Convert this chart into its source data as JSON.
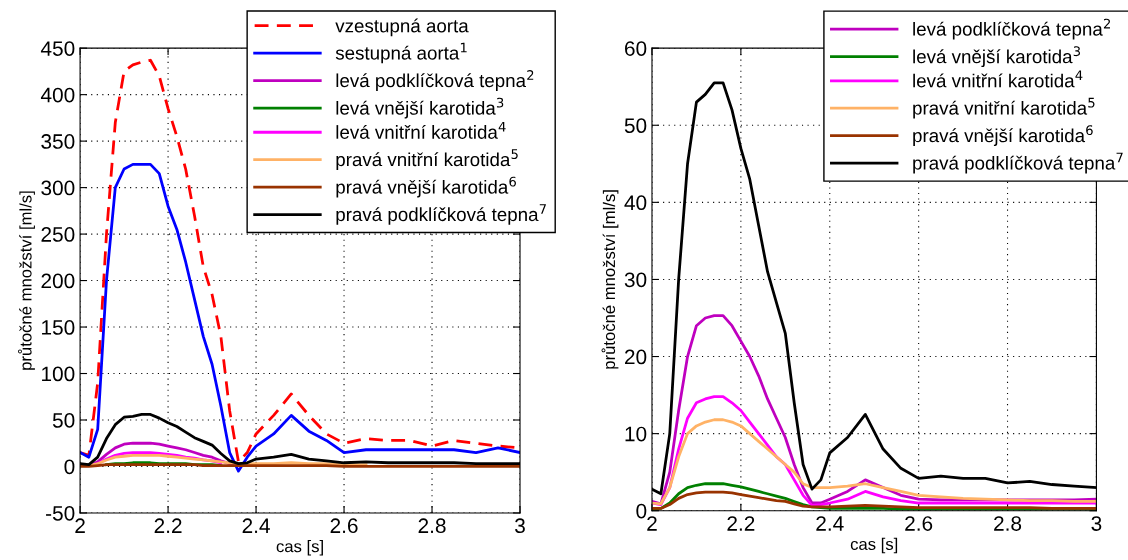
{
  "chart_data": [
    {
      "type": "line",
      "xlabel": "cas [s]",
      "ylabel": "průtočné množství [ml/s]",
      "xlim": [
        2,
        3
      ],
      "ylim": [
        -50,
        450
      ],
      "xticks": [
        2,
        2.2,
        2.4,
        2.6,
        2.8,
        3
      ],
      "yticks": [
        -50,
        0,
        50,
        100,
        150,
        200,
        250,
        300,
        350,
        400,
        450
      ],
      "grid": true,
      "legend": "top right",
      "x": [
        2.0,
        2.02,
        2.04,
        2.06,
        2.08,
        2.1,
        2.12,
        2.14,
        2.16,
        2.18,
        2.2,
        2.22,
        2.24,
        2.26,
        2.28,
        2.3,
        2.32,
        2.34,
        2.36,
        2.38,
        2.4,
        2.44,
        2.48,
        2.52,
        2.56,
        2.6,
        2.65,
        2.7,
        2.75,
        2.8,
        2.85,
        2.9,
        2.95,
        3.0
      ],
      "series": [
        {
          "name": "vzestupná aorta",
          "color": "#ff0000",
          "line_style": "dashed",
          "values": [
            15,
            12,
            90,
            250,
            370,
            425,
            432,
            435,
            437,
            420,
            385,
            355,
            320,
            270,
            215,
            185,
            140,
            60,
            5,
            15,
            35,
            55,
            78,
            55,
            35,
            25,
            30,
            28,
            28,
            22,
            28,
            25,
            22,
            20
          ]
        },
        {
          "name": "sestupná aorta$^{1}$",
          "color": "#0000ff",
          "values": [
            15,
            10,
            40,
            200,
            300,
            320,
            325,
            325,
            325,
            315,
            280,
            255,
            220,
            180,
            140,
            110,
            65,
            15,
            -5,
            10,
            22,
            35,
            55,
            38,
            28,
            15,
            18,
            18,
            18,
            18,
            18,
            15,
            20,
            15
          ]
        },
        {
          "name": "levá podklíčková tepna$^{2}$",
          "color": "#bf00bf",
          "values": [
            1,
            1,
            5,
            13,
            20,
            24,
            25,
            25,
            25,
            24,
            22,
            20,
            18,
            15,
            12,
            10,
            6,
            3,
            1,
            null,
            null,
            null,
            null,
            null,
            null,
            null,
            null,
            null,
            null,
            null,
            null,
            null,
            null,
            null
          ]
        },
        {
          "name": "levá vnější karotida$^{3}$",
          "color": "#008000",
          "values": [
            null,
            null,
            null,
            2,
            3,
            3,
            4,
            4,
            4,
            3,
            3,
            3,
            3,
            2,
            2,
            2,
            1,
            null,
            null,
            null,
            null,
            null,
            null,
            null,
            null,
            null,
            null,
            null,
            null,
            null,
            null,
            null,
            null,
            null
          ]
        },
        {
          "name": "levá vnitřní karotida$^{4}$",
          "color": "#ff00ff",
          "values": [
            null,
            null,
            3,
            8,
            12,
            14,
            15,
            15,
            15,
            14,
            13,
            12,
            10,
            9,
            7,
            6,
            4,
            null,
            null,
            null,
            null,
            null,
            null,
            null,
            null,
            null,
            null,
            null,
            null,
            null,
            null,
            null,
            null,
            null
          ]
        },
        {
          "name": "pravá vnitřní karotida$^{5}$",
          "color": "#ffb266",
          "values": [
            1,
            1,
            3,
            7,
            10,
            11,
            12,
            12,
            12,
            12,
            11,
            10,
            9,
            8,
            7,
            6,
            5,
            4,
            3,
            3,
            3,
            3,
            4,
            3,
            3,
            2,
            2,
            null,
            null,
            null,
            null,
            null,
            null,
            null
          ]
        },
        {
          "name": "pravá vnější karotida$^{6}$",
          "color": "#993300",
          "values": [
            0,
            0,
            1,
            2,
            2,
            2,
            2,
            2,
            2,
            2,
            2,
            2,
            2,
            2,
            1,
            1,
            1,
            1,
            1,
            1,
            1,
            1,
            1,
            1,
            1,
            0,
            0,
            0,
            0,
            0,
            0,
            0,
            0,
            0
          ]
        },
        {
          "name": "pravá podklíčková tepna$^{7}$",
          "color": "#000000",
          "values": [
            3,
            2,
            10,
            30,
            45,
            53,
            54,
            56,
            56,
            52,
            47,
            43,
            37,
            31,
            27,
            23,
            14,
            6,
            3,
            4,
            8,
            10,
            13,
            8,
            6,
            4,
            5,
            4,
            4,
            4,
            4,
            3,
            3,
            3
          ]
        }
      ]
    },
    {
      "type": "line",
      "xlabel": "cas [s]",
      "ylabel": "průtočné množství [ml/s]",
      "xlim": [
        2,
        3
      ],
      "ylim": [
        0,
        60
      ],
      "xticks": [
        2,
        2.2,
        2.4,
        2.6,
        2.8,
        3
      ],
      "yticks": [
        0,
        10,
        20,
        30,
        40,
        50,
        60
      ],
      "grid": true,
      "legend": "top right",
      "x": [
        2.0,
        2.02,
        2.04,
        2.06,
        2.08,
        2.1,
        2.12,
        2.14,
        2.16,
        2.18,
        2.2,
        2.22,
        2.24,
        2.26,
        2.28,
        2.3,
        2.32,
        2.34,
        2.36,
        2.38,
        2.4,
        2.44,
        2.48,
        2.52,
        2.56,
        2.6,
        2.65,
        2.7,
        2.75,
        2.8,
        2.85,
        2.9,
        2.95,
        3.0
      ],
      "series": [
        {
          "name": "levá podklíčková tepna$^{2}$",
          "color": "#bf00bf",
          "values": [
            1.2,
            0.9,
            5,
            13,
            20,
            24,
            25,
            25.3,
            25.3,
            24,
            22,
            20,
            17.5,
            14.5,
            12,
            9.5,
            6,
            3,
            1,
            1,
            1.5,
            2.5,
            4,
            3,
            2,
            1.5,
            1.4,
            1.4,
            1.4,
            1.4,
            1.4,
            1.4,
            1.4,
            1.5
          ]
        },
        {
          "name": "levá vnější karotida$^{3}$",
          "color": "#008000",
          "values": [
            0.2,
            0.3,
            1,
            2.2,
            3,
            3.3,
            3.5,
            3.5,
            3.5,
            3.3,
            3.1,
            2.8,
            2.5,
            2.2,
            1.9,
            1.6,
            1.2,
            0.8,
            0.5,
            0.4,
            0.3,
            0.3,
            0.3,
            0.3,
            0.2,
            0.2,
            0.2,
            0.2,
            0.2,
            0.2,
            0.2,
            0.2,
            0.2,
            0.2
          ]
        },
        {
          "name": "levá vnitřní karotida$^{4}$",
          "color": "#ff00ff",
          "values": [
            1,
            0.8,
            3,
            8,
            12,
            14,
            14.5,
            14.8,
            14.8,
            14,
            13,
            11.5,
            10,
            8.5,
            7,
            6,
            4,
            2,
            0.7,
            0.8,
            1,
            1.5,
            2.5,
            1.8,
            1.3,
            1,
            1,
            1,
            1,
            1,
            1,
            1,
            1,
            1
          ]
        },
        {
          "name": "pravá vnitřní karotida$^{5}$",
          "color": "#ffb266",
          "values": [
            1,
            0.9,
            3,
            7,
            10,
            11,
            11.5,
            11.8,
            11.8,
            11.5,
            11,
            10,
            9,
            8,
            7,
            6,
            5,
            3.5,
            3,
            3,
            3,
            3.2,
            3.5,
            3,
            2.5,
            2,
            1.8,
            1.6,
            1.5,
            1.4,
            1.3,
            1.3,
            1.2,
            1.2
          ]
        },
        {
          "name": "pravá vnější karotida$^{6}$",
          "color": "#993300",
          "values": [
            0.3,
            0.3,
            0.8,
            1.6,
            2.1,
            2.3,
            2.4,
            2.4,
            2.4,
            2.3,
            2.1,
            1.9,
            1.7,
            1.5,
            1.3,
            1.2,
            0.9,
            0.6,
            0.5,
            0.5,
            0.5,
            0.6,
            0.7,
            0.6,
            0.5,
            0.4,
            0.4,
            0.4,
            0.4,
            0.4,
            0.4,
            0.3,
            0.3,
            0.3
          ]
        },
        {
          "name": "pravá podklíčková tepna$^{7}$",
          "color": "#000000",
          "values": [
            2.8,
            2.2,
            10,
            30,
            45,
            53,
            54,
            55.5,
            55.5,
            52,
            47,
            43,
            37,
            31,
            27,
            23,
            14,
            6,
            2.8,
            4,
            7.5,
            9.5,
            12.5,
            8,
            5.5,
            4.2,
            4.5,
            4.2,
            4.2,
            3.6,
            3.8,
            3.4,
            3.2,
            3.0
          ]
        }
      ]
    }
  ]
}
